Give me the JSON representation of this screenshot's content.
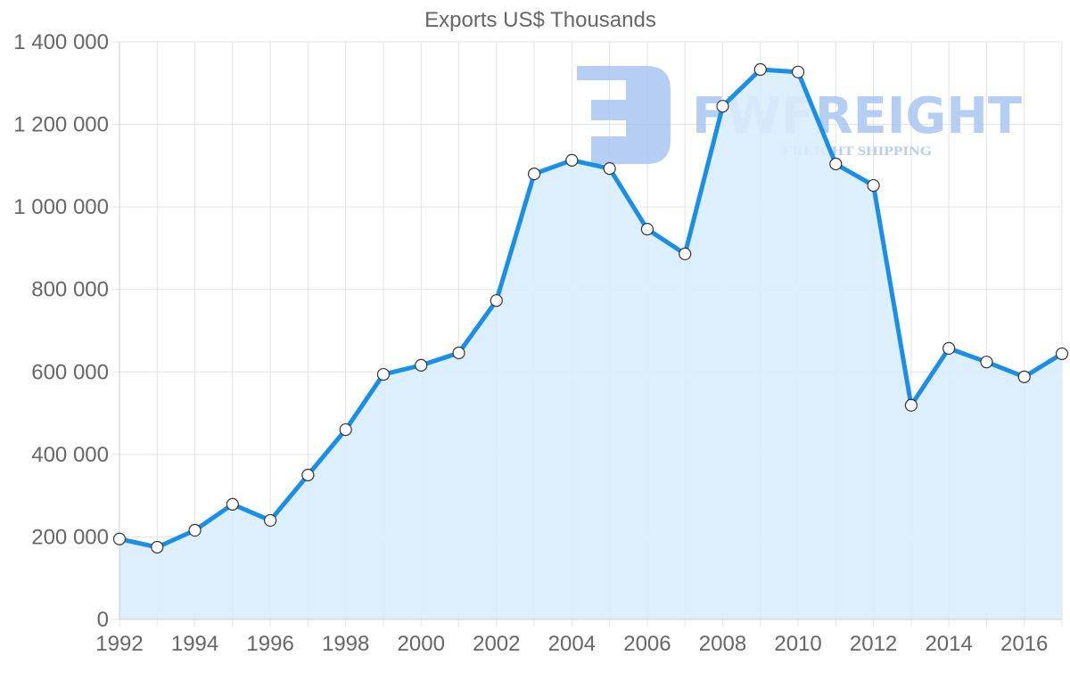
{
  "chart_data": {
    "type": "area",
    "title": "Exports US$ Thousands",
    "xlabel": "",
    "ylabel": "",
    "ylim": [
      0,
      1400000
    ],
    "yticks": [
      0,
      200000,
      400000,
      600000,
      800000,
      1000000,
      1200000,
      1400000
    ],
    "ytick_labels": [
      "0",
      "200 000",
      "400 000",
      "600 000",
      "800 000",
      "1 000 000",
      "1 200 000",
      "1 400 000"
    ],
    "xtick_labels": [
      "1992",
      "1994",
      "1996",
      "1998",
      "2000",
      "2002",
      "2004",
      "2006",
      "2008",
      "2010",
      "2012",
      "2014",
      "2016"
    ],
    "grid": true,
    "legend": "none",
    "x": [
      1992,
      1993,
      1994,
      1995,
      1996,
      1997,
      1998,
      1999,
      2000,
      2001,
      2002,
      2003,
      2004,
      2005,
      2006,
      2007,
      2008,
      2009,
      2010,
      2011,
      2012,
      2013,
      2014,
      2015,
      2016,
      2017
    ],
    "series": [
      {
        "name": "Exports US$ Thousands",
        "values": [
          195000,
          175000,
          216000,
          279000,
          240000,
          350000,
          460000,
          594000,
          616000,
          646000,
          773000,
          1080000,
          1113000,
          1093000,
          946000,
          886000,
          1244000,
          1333000,
          1327000,
          1104000,
          1052000,
          519000,
          657000,
          624000,
          588000,
          644000
        ],
        "line_color": "#1a8fe8",
        "fill_color": "#d9ecfc"
      }
    ]
  },
  "watermark": {
    "logo_letter": "F",
    "brand": "FWFREIGHT",
    "tagline": "FREIGHT SHIPPING",
    "color": "#a9c6f2"
  }
}
